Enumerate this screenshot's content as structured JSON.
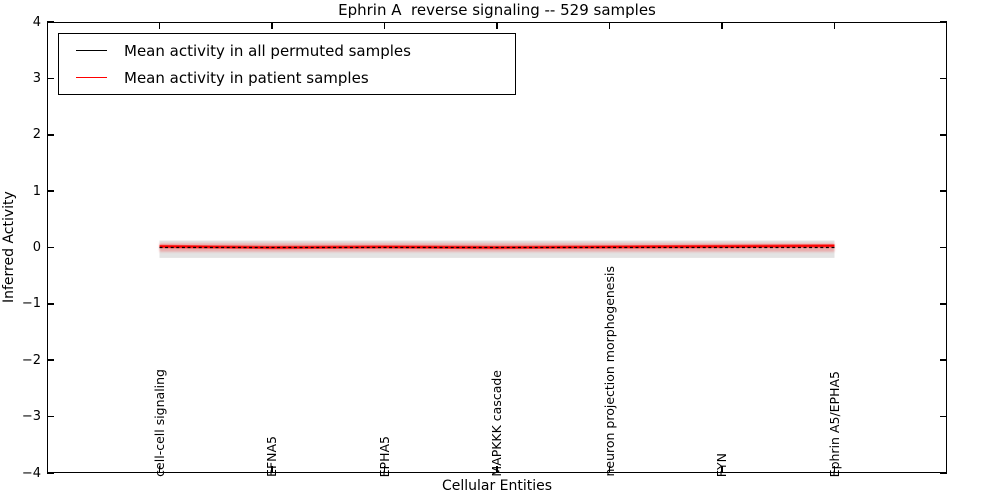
{
  "chart_data": {
    "type": "line",
    "title": "Ephrin A  reverse signaling -- 529 samples",
    "xlabel": "Cellular Entities",
    "ylabel": "Inferred Activity",
    "ylim": [
      -4,
      4
    ],
    "yticks": [
      4,
      3,
      2,
      1,
      0,
      -1,
      -2,
      -3,
      -4
    ],
    "grid": false,
    "legend_position": "upper left",
    "categories": [
      "cell-cell signaling",
      "EFNA5",
      "EPHA5",
      "MAPKKK cascade",
      "neuron projection morphogenesis",
      "FYN",
      "Ephrin A5/EPHA5"
    ],
    "series": [
      {
        "name": "Mean activity in all permuted samples",
        "color": "#000000",
        "line_style": "solid",
        "values": [
          0.0,
          0.0,
          0.0,
          0.0,
          0.0,
          0.0,
          0.0
        ]
      },
      {
        "name": "Mean activity in patient samples",
        "color": "#ff0000",
        "line_style": "solid",
        "values": [
          0.02,
          0.0,
          0.01,
          0.0,
          0.01,
          0.02,
          0.03
        ]
      }
    ],
    "bands": [
      {
        "name": "permuted samples spread",
        "color": "#e3e3e3",
        "center": -0.03,
        "half_width": 0.155
      },
      {
        "name": "patient samples spread",
        "color": "rgba(255,0,0,0.25)",
        "center": 0.0,
        "half_width": 0.075
      }
    ]
  },
  "legend": {
    "items": [
      {
        "label": "Mean activity in all permuted samples",
        "color": "#000000"
      },
      {
        "label": "Mean activity in patient samples",
        "color": "#ff0000"
      }
    ]
  }
}
